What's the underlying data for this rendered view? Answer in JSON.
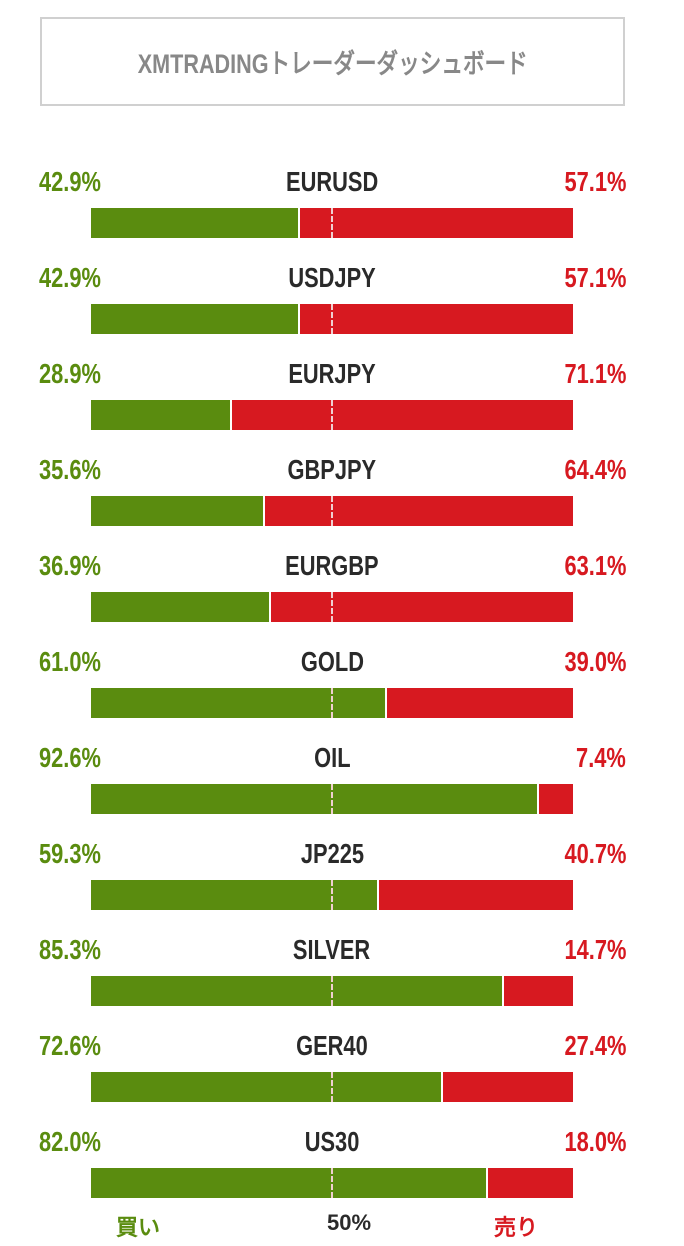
{
  "header": {
    "title": "XMTRADINGトレーダーダッシュボード"
  },
  "colors": {
    "buy": "#5a8c0f",
    "sell": "#d71920"
  },
  "rows": [
    {
      "symbol": "EURUSD",
      "buy": "42.9%",
      "sell": "57.1%",
      "buy_value": 42.9
    },
    {
      "symbol": "USDJPY",
      "buy": "42.9%",
      "sell": "57.1%",
      "buy_value": 42.9
    },
    {
      "symbol": "EURJPY",
      "buy": "28.9%",
      "sell": "71.1%",
      "buy_value": 28.9
    },
    {
      "symbol": "GBPJPY",
      "buy": "35.6%",
      "sell": "64.4%",
      "buy_value": 35.6
    },
    {
      "symbol": "EURGBP",
      "buy": "36.9%",
      "sell": "63.1%",
      "buy_value": 36.9
    },
    {
      "symbol": "GOLD",
      "buy": "61.0%",
      "sell": "39.0%",
      "buy_value": 61.0
    },
    {
      "symbol": "OIL",
      "buy": "92.6%",
      "sell": "7.4%",
      "buy_value": 92.6
    },
    {
      "symbol": "JP225",
      "buy": "59.3%",
      "sell": "40.7%",
      "buy_value": 59.3
    },
    {
      "symbol": "SILVER",
      "buy": "85.3%",
      "sell": "14.7%",
      "buy_value": 85.3
    },
    {
      "symbol": "GER40",
      "buy": "72.6%",
      "sell": "27.4%",
      "buy_value": 72.6
    },
    {
      "symbol": "US30",
      "buy": "82.0%",
      "sell": "18.0%",
      "buy_value": 82.0
    }
  ],
  "footer": {
    "buy_label": "買い",
    "mid_label": "50%",
    "sell_label": "売り"
  }
}
